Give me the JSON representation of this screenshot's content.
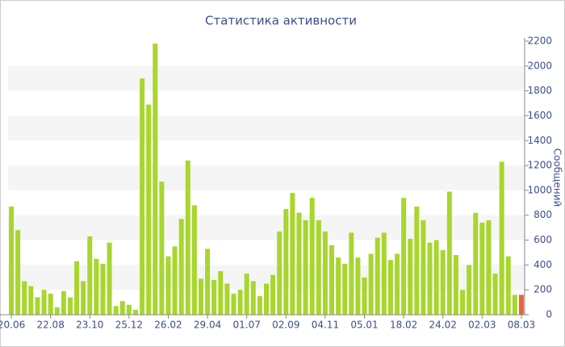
{
  "chart_data": {
    "type": "bar",
    "title": "Статистика активности",
    "y_axis_label": "Сообщений",
    "categories": [
      "20.06",
      null,
      null,
      null,
      null,
      null,
      "22.08",
      null,
      null,
      null,
      null,
      null,
      "23.10",
      null,
      null,
      null,
      null,
      null,
      "25.12",
      null,
      null,
      null,
      null,
      null,
      "26.02",
      null,
      null,
      null,
      null,
      null,
      "29.04",
      null,
      null,
      null,
      null,
      null,
      "01.07",
      null,
      null,
      null,
      null,
      null,
      "02.09",
      null,
      null,
      null,
      null,
      null,
      "04.11",
      null,
      null,
      null,
      null,
      null,
      "05.01",
      null,
      null,
      null,
      null,
      null,
      "18.02",
      null,
      null,
      null,
      null,
      null,
      "24.02",
      null,
      null,
      null,
      null,
      null,
      "02.03",
      null,
      null,
      null,
      null,
      null,
      "08.03"
    ],
    "values": [
      870,
      680,
      270,
      230,
      140,
      200,
      170,
      60,
      190,
      140,
      430,
      270,
      630,
      450,
      410,
      580,
      70,
      110,
      80,
      40,
      1900,
      1690,
      2180,
      1070,
      470,
      550,
      770,
      1240,
      880,
      290,
      530,
      280,
      350,
      250,
      170,
      200,
      330,
      270,
      150,
      250,
      320,
      670,
      850,
      980,
      820,
      760,
      940,
      760,
      670,
      560,
      460,
      410,
      660,
      460,
      300,
      490,
      620,
      660,
      440,
      490,
      940,
      610,
      870,
      760,
      580,
      600,
      520,
      990,
      480,
      200,
      400,
      820,
      740,
      760,
      330,
      1230,
      470,
      160,
      160
    ],
    "color": "#a8d62e",
    "last_color": "#e8653b",
    "ylim": [
      0,
      2200
    ],
    "yticks": [
      0,
      200,
      400,
      600,
      800,
      1000,
      1200,
      1400,
      1600,
      1800,
      2000,
      2200
    ],
    "grid": "alternating-bands"
  }
}
